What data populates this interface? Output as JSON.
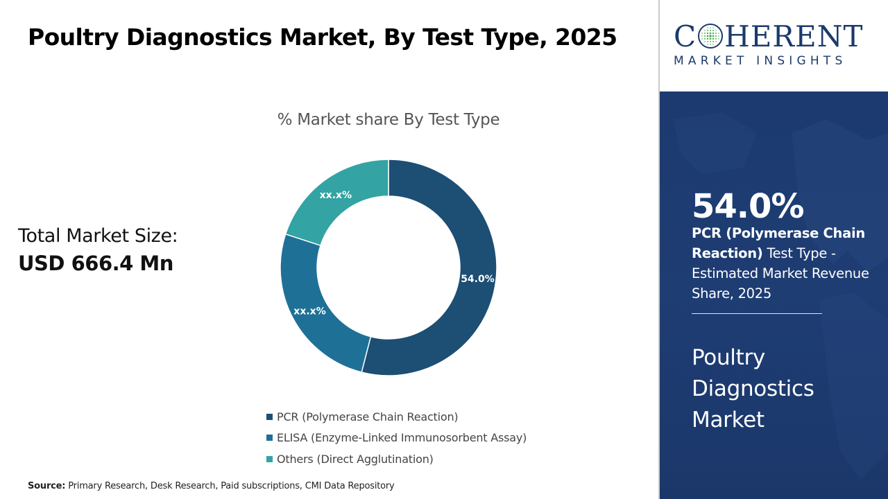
{
  "title": "Poultry Diagnostics Market, By Test Type, 2025",
  "total_market": {
    "label": "Total Market Size:",
    "value": "USD 666.4 Mn"
  },
  "source": {
    "label": "Source:",
    "text": " Primary Research, Desk Research, Paid subscriptions, CMI Data Repository"
  },
  "logo": {
    "pre": "C",
    "post": "HERENT",
    "sub": "MARKET INSIGHTS"
  },
  "highlight": {
    "percent": "54.0%",
    "segment_bold": "PCR (Polymerase Chain Reaction)",
    "segment_rest": " Test Type - Estimated Market Revenue Share, 2025",
    "market_name": "Poultry Diagnostics Market"
  },
  "chart_data": {
    "type": "pie",
    "title": "% Market share By Test Type",
    "donut": true,
    "legend_position": "bottom",
    "slices": [
      {
        "name": "PCR (Polymerase Chain Reaction)",
        "value": 54.0,
        "label": "54.0%",
        "color": "#1d4e74"
      },
      {
        "name": "ELISA (Enzyme-Linked Immunosorbent Assay)",
        "value": 26.0,
        "label": "xx.x%",
        "color": "#1f7096"
      },
      {
        "name": "Others (Direct Agglutination)",
        "value": 20.0,
        "label": "xx.x%",
        "color": "#33a3a3"
      }
    ]
  },
  "colors": {
    "brand_navy": "#1b3a6b",
    "panel_background": "#1d3c72"
  }
}
